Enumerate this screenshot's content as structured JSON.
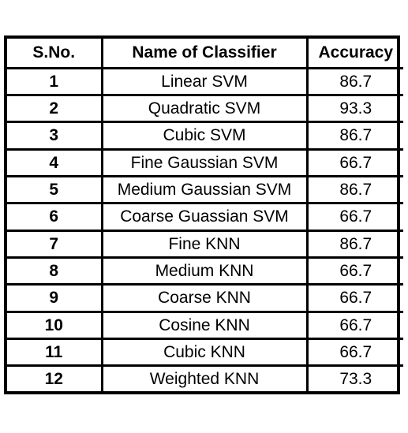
{
  "table": {
    "headers": [
      "S.No.",
      "Name of Classifier",
      "Accuracy"
    ],
    "rows": [
      {
        "sno": "1",
        "name": "Linear SVM",
        "accuracy": "86.7"
      },
      {
        "sno": "2",
        "name": "Quadratic SVM",
        "accuracy": "93.3"
      },
      {
        "sno": "3",
        "name": "Cubic SVM",
        "accuracy": "86.7"
      },
      {
        "sno": "4",
        "name": "Fine Gaussian SVM",
        "accuracy": "66.7"
      },
      {
        "sno": "5",
        "name": "Medium Gaussian SVM",
        "accuracy": "86.7"
      },
      {
        "sno": "6",
        "name": "Coarse Guassian SVM",
        "accuracy": "66.7"
      },
      {
        "sno": "7",
        "name": "Fine KNN",
        "accuracy": "86.7"
      },
      {
        "sno": "8",
        "name": "Medium KNN",
        "accuracy": "66.7"
      },
      {
        "sno": "9",
        "name": "Coarse KNN",
        "accuracy": "66.7"
      },
      {
        "sno": "10",
        "name": "Cosine KNN",
        "accuracy": "66.7"
      },
      {
        "sno": "11",
        "name": "Cubic KNN",
        "accuracy": "66.7"
      },
      {
        "sno": "12",
        "name": "Weighted KNN",
        "accuracy": "73.3"
      }
    ]
  }
}
